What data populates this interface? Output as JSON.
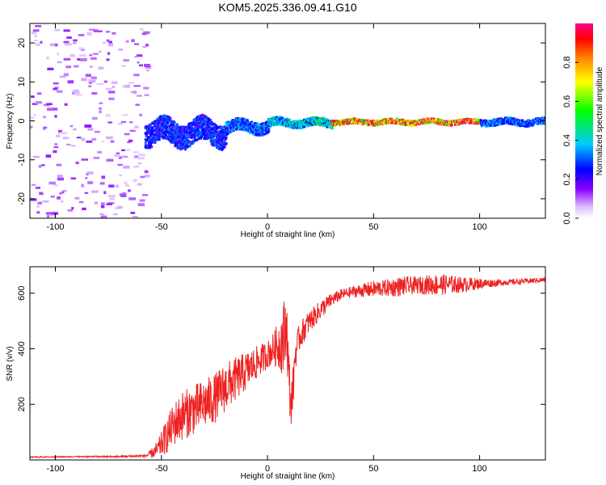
{
  "title": "KOM5.2025.336.09.41.G10",
  "colors": {
    "snr_line": "#ee2222",
    "axis": "#000000",
    "background": "#ffffff"
  },
  "chart_data": [
    {
      "type": "heatmap",
      "xlabel": "Height of straight line (km)",
      "ylabel": "Frequency (Hz)",
      "xlim": [
        -112,
        131
      ],
      "ylim": [
        -25,
        25
      ],
      "xticks": [
        "-100",
        "-50",
        "0",
        "50",
        "100"
      ],
      "yticks": [
        "-20",
        "-10",
        "0",
        "10",
        "20"
      ],
      "colorbar": {
        "label": "Normalized spectral amplitude",
        "range": [
          0,
          1
        ],
        "ticks": [
          "0.0",
          "0.2",
          "0.4",
          "0.6",
          "0.8"
        ],
        "colormap": "rainbow (purple -> blue -> cyan -> green -> yellow -> red -> magenta)"
      },
      "features": [
        {
          "x_range": [
            -112,
            -57
          ],
          "freq_range": [
            -25,
            25
          ],
          "amplitude": 0.05,
          "description": "scattered low-amplitude noise"
        },
        {
          "x_range": [
            -58,
            -20
          ],
          "freq_center": -3,
          "freq_spread": 3,
          "amplitude": 0.3
        },
        {
          "x_range": [
            -20,
            0
          ],
          "freq_center": -1.5,
          "freq_spread": 1.5,
          "amplitude": 0.35
        },
        {
          "x_range": [
            0,
            30
          ],
          "freq_center": -0.5,
          "freq_spread": 1,
          "amplitude": 0.45
        },
        {
          "x_range": [
            30,
            100
          ],
          "freq_center": -0.3,
          "freq_spread": 0.6,
          "amplitude": 0.95
        },
        {
          "x_range": [
            100,
            131
          ],
          "freq_center": -0.3,
          "freq_spread": 0.8,
          "amplitude": 0.35
        }
      ]
    },
    {
      "type": "line",
      "xlabel": "Height of straight line (km)",
      "ylabel": "SNR (v/v)",
      "xlim": [
        -112,
        131
      ],
      "ylim": [
        0,
        695
      ],
      "xticks": [
        "-100",
        "-50",
        "0",
        "50",
        "100"
      ],
      "yticks": [
        "200",
        "400",
        "600"
      ],
      "series": [
        {
          "x": [
            -112,
            -90,
            -70,
            -57,
            -52,
            -48,
            -44,
            -40,
            -35,
            -30,
            -25,
            -20,
            -15,
            -10,
            -5,
            0,
            3,
            6,
            8,
            9,
            10,
            11,
            12,
            13,
            15,
            18,
            20,
            25,
            30,
            35,
            40,
            45,
            50,
            55,
            60,
            65,
            70,
            75,
            80,
            85,
            90,
            95,
            100,
            105,
            110,
            115,
            120,
            125,
            131
          ],
          "y": [
            10,
            12,
            12,
            15,
            35,
            80,
            130,
            160,
            180,
            200,
            220,
            260,
            290,
            320,
            350,
            380,
            400,
            420,
            440,
            500,
            300,
            200,
            250,
            380,
            440,
            480,
            500,
            540,
            575,
            595,
            605,
            610,
            615,
            618,
            622,
            626,
            628,
            630,
            630,
            632,
            630,
            632,
            634,
            636,
            638,
            640,
            642,
            645,
            648
          ],
          "noise_amplitude": [
            2,
            2,
            3,
            5,
            30,
            60,
            80,
            90,
            90,
            90,
            90,
            90,
            80,
            70,
            60,
            50,
            60,
            100,
            150,
            100,
            120,
            80,
            80,
            60,
            50,
            45,
            40,
            35,
            25,
            20,
            20,
            25,
            30,
            30,
            35,
            35,
            30,
            35,
            40,
            35,
            30,
            25,
            20,
            15,
            12,
            10,
            10,
            10,
            8
          ]
        }
      ]
    }
  ]
}
